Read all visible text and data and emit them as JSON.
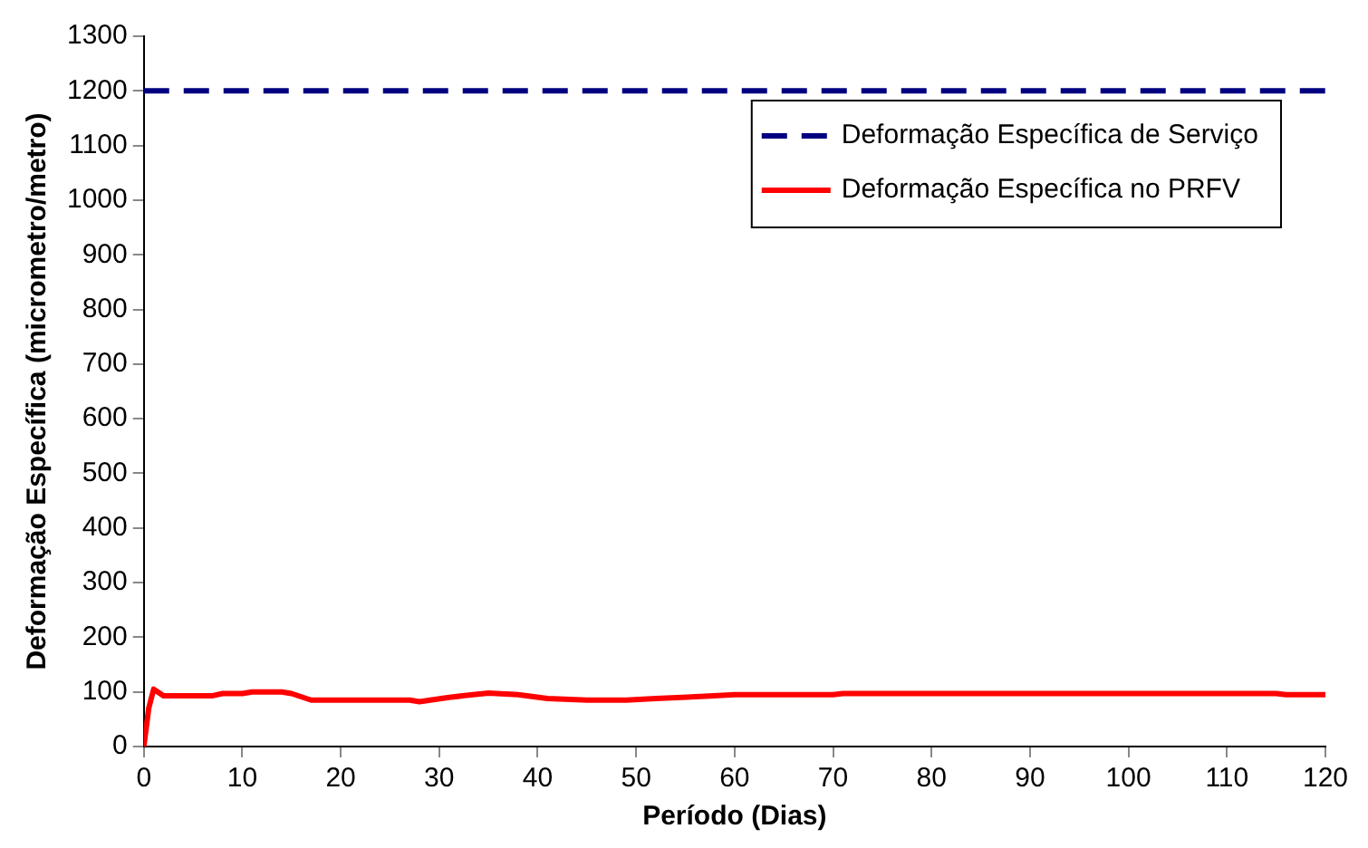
{
  "chart_data": {
    "type": "line",
    "xlabel": "Período (Dias)",
    "ylabel": "Deformação Específica (micrometro/metro)",
    "xlim": [
      0,
      120
    ],
    "xticks": [
      0,
      10,
      20,
      30,
      40,
      50,
      60,
      70,
      80,
      90,
      100,
      110,
      120
    ],
    "ylim": [
      0,
      1300
    ],
    "yticks": [
      0,
      100,
      200,
      300,
      400,
      500,
      600,
      700,
      800,
      900,
      1000,
      1100,
      1200,
      1300
    ],
    "grid": false,
    "legend": "top right",
    "marker": "none",
    "series": [
      {
        "name": "Deformação Específica de Serviço",
        "color": "#000080",
        "line_style": "dashed",
        "x": [
          0,
          120
        ],
        "values": [
          1200,
          1200
        ]
      },
      {
        "name": "Deformação Específica no PRFV",
        "color": "#ff0000",
        "line_style": "solid",
        "x": [
          0,
          0.5,
          1,
          2,
          7,
          8,
          10,
          11,
          14,
          15,
          17,
          27,
          28,
          31,
          35,
          38,
          41,
          45,
          49,
          52,
          57,
          60,
          70,
          71,
          115,
          116,
          120
        ],
        "values": [
          0,
          70,
          105,
          93,
          93,
          97,
          97,
          100,
          100,
          97,
          85,
          85,
          82,
          90,
          98,
          95,
          88,
          85,
          85,
          88,
          92,
          95,
          95,
          97,
          97,
          95,
          95
        ]
      }
    ]
  }
}
